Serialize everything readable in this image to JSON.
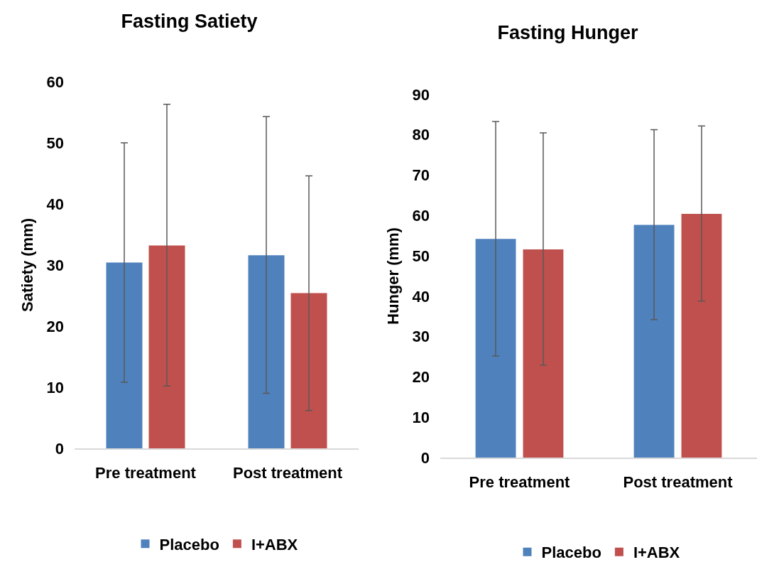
{
  "chart_data": [
    {
      "type": "bar",
      "title": "Fasting Satiety",
      "ylabel": "Satiety (mm)",
      "categories": [
        "Pre treatment",
        "Post treatment"
      ],
      "series": [
        {
          "name": "Placebo",
          "color": "#4f81bd",
          "values": [
            30.4,
            31.6
          ],
          "errors": [
            [
              10.8,
              50.0
            ],
            [
              9.0,
              54.3
            ]
          ]
        },
        {
          "name": "I+ABX",
          "color": "#c0504d",
          "values": [
            33.2,
            25.4
          ],
          "errors": [
            [
              10.2,
              56.3
            ],
            [
              6.2,
              44.6
            ]
          ]
        }
      ],
      "ylim": [
        0,
        60
      ],
      "yticks": [
        0,
        10,
        20,
        30,
        40,
        50,
        60
      ],
      "grid": false,
      "legend": "bottom"
    },
    {
      "type": "bar",
      "title": "Fasting Hunger",
      "ylabel": "Hunger (mm)",
      "categories": [
        "Pre treatment",
        "Post treatment"
      ],
      "series": [
        {
          "name": "Placebo",
          "color": "#4f81bd",
          "values": [
            54.2,
            57.7
          ],
          "errors": [
            [
              25.2,
              83.3
            ],
            [
              34.2,
              81.3
            ]
          ]
        },
        {
          "name": "I+ABX",
          "color": "#c0504d",
          "values": [
            51.6,
            60.4
          ],
          "errors": [
            [
              22.9,
              80.5
            ],
            [
              38.8,
              82.2
            ]
          ]
        }
      ],
      "ylim": [
        0,
        90
      ],
      "yticks": [
        0,
        10,
        20,
        30,
        40,
        50,
        60,
        70,
        80,
        90
      ],
      "grid": false,
      "legend": "bottom"
    }
  ]
}
